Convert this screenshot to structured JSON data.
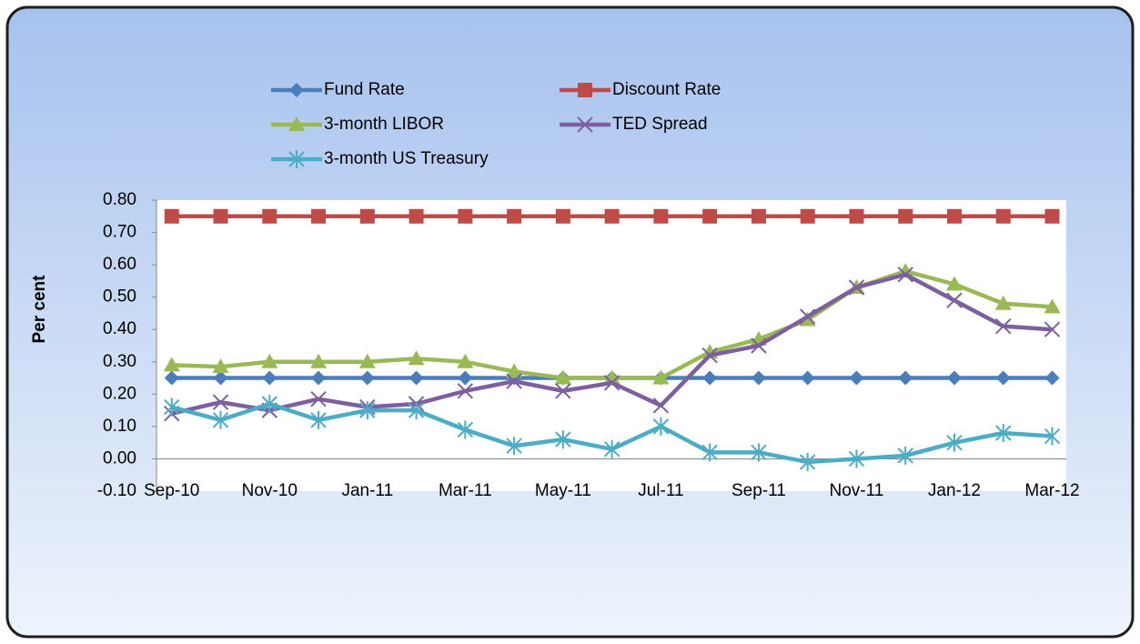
{
  "chart_data": {
    "type": "line",
    "y_label": "Per cent",
    "categories": [
      "Sep-10",
      null,
      "Nov-10",
      null,
      "Jan-11",
      null,
      "Mar-11",
      null,
      "May-11",
      null,
      "Jul-11",
      null,
      "Sep-11",
      null,
      "Nov-11",
      null,
      "Jan-12",
      null,
      "Mar-12"
    ],
    "series": [
      {
        "name": "Fund Rate",
        "color": "#4a7ebb",
        "marker": "diamond",
        "values": [
          0.25,
          0.25,
          0.25,
          0.25,
          0.25,
          0.25,
          0.25,
          0.25,
          0.25,
          0.25,
          0.25,
          0.25,
          0.25,
          0.25,
          0.25,
          0.25,
          0.25,
          0.25,
          0.25
        ]
      },
      {
        "name": "Discount Rate",
        "color": "#be4b48",
        "marker": "square",
        "values": [
          0.75,
          0.75,
          0.75,
          0.75,
          0.75,
          0.75,
          0.75,
          0.75,
          0.75,
          0.75,
          0.75,
          0.75,
          0.75,
          0.75,
          0.75,
          0.75,
          0.75,
          0.75,
          0.75
        ]
      },
      {
        "name": "3-month LIBOR",
        "color": "#98b954",
        "marker": "triangle",
        "values": [
          0.29,
          0.285,
          0.3,
          0.3,
          0.3,
          0.31,
          0.3,
          0.27,
          0.25,
          0.25,
          0.25,
          0.33,
          0.37,
          0.43,
          0.53,
          0.58,
          0.54,
          0.48,
          0.47
        ]
      },
      {
        "name": "TED Spread",
        "color": "#7d5fa0",
        "marker": "x",
        "values": [
          0.14,
          0.175,
          0.15,
          0.185,
          0.16,
          0.17,
          0.21,
          0.24,
          0.21,
          0.235,
          0.165,
          0.32,
          0.35,
          0.44,
          0.53,
          0.57,
          0.49,
          0.41,
          0.4
        ]
      },
      {
        "name": "3-month US Treasury",
        "color": "#4bacc6",
        "marker": "asterisk",
        "values": [
          0.16,
          0.12,
          0.17,
          0.12,
          0.15,
          0.15,
          0.09,
          0.04,
          0.06,
          0.03,
          0.1,
          0.02,
          0.02,
          -0.01,
          0.0,
          0.01,
          0.05,
          0.08,
          0.07
        ]
      }
    ],
    "ylim": [
      -0.1,
      0.8
    ],
    "yticks": [
      {
        "value": -0.1,
        "label": "-0.10"
      },
      {
        "value": 0,
        "label": "0.00"
      },
      {
        "value": 0.1,
        "label": "0.10"
      },
      {
        "value": 0.2,
        "label": "0.20"
      },
      {
        "value": 0.3,
        "label": "0.30"
      },
      {
        "value": 0.4,
        "label": "0.40"
      },
      {
        "value": 0.5,
        "label": "0.50"
      },
      {
        "value": 0.6,
        "label": "0.60"
      },
      {
        "value": 0.7,
        "label": "0.70"
      },
      {
        "value": 0.8,
        "label": "0.80"
      }
    ],
    "grid": false
  }
}
